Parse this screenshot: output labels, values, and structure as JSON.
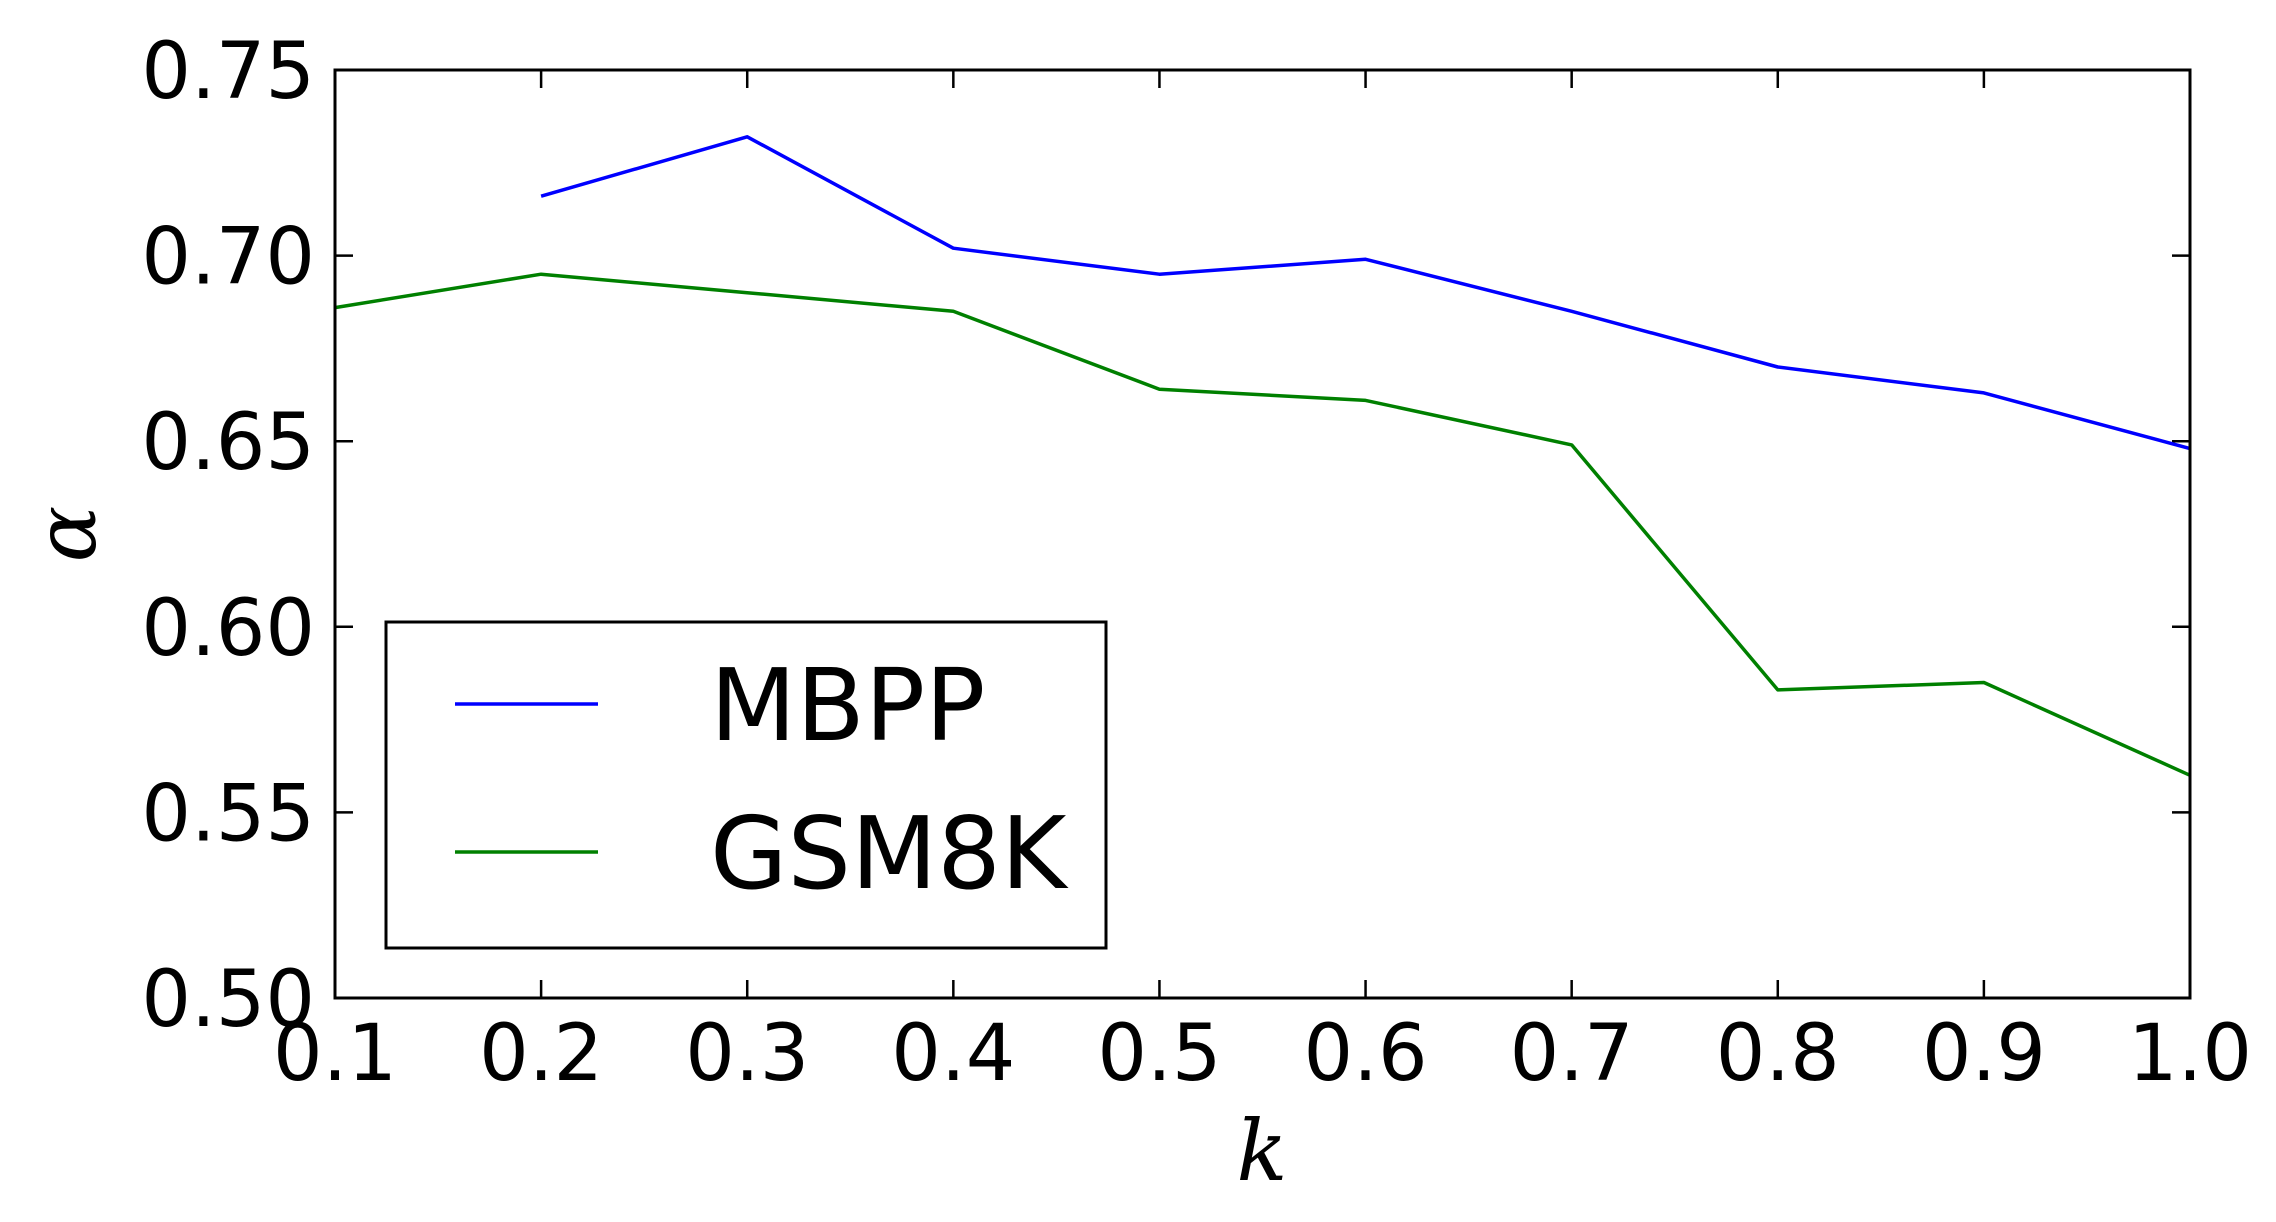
{
  "chart_data": {
    "type": "line",
    "title": "",
    "xlabel": "k",
    "ylabel": "α",
    "xlim": [
      0.1,
      1.0
    ],
    "ylim": [
      0.5,
      0.75
    ],
    "xticks": [
      "0.1",
      "0.2",
      "0.3",
      "0.4",
      "0.5",
      "0.6",
      "0.7",
      "0.8",
      "0.9",
      "1.0"
    ],
    "yticks": [
      "0.50",
      "0.55",
      "0.60",
      "0.65",
      "0.70",
      "0.75"
    ],
    "grid": false,
    "legend": "lower-left",
    "series": [
      {
        "name": "MBPP",
        "color": "#0000ff",
        "x": [
          0.2,
          0.3,
          0.4,
          0.5,
          0.6,
          0.7,
          0.8,
          0.9,
          1.0
        ],
        "y": [
          0.716,
          0.732,
          0.702,
          0.695,
          0.699,
          0.685,
          0.67,
          0.663,
          0.648
        ]
      },
      {
        "name": "GSM8K",
        "color": "#008000",
        "x": [
          0.1,
          0.2,
          0.3,
          0.4,
          0.5,
          0.6,
          0.7,
          0.8,
          0.9,
          1.0
        ],
        "y": [
          0.686,
          0.695,
          0.69,
          0.685,
          0.664,
          0.661,
          0.649,
          0.583,
          0.585,
          0.56
        ]
      }
    ]
  }
}
